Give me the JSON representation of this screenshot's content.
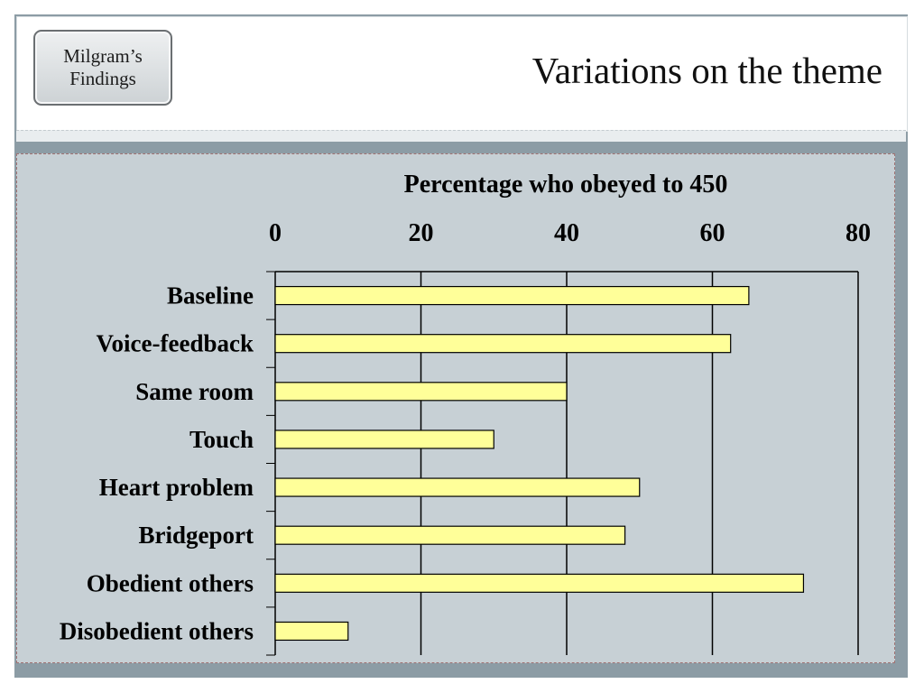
{
  "header": {
    "badge": {
      "line1": "Milgram’s",
      "line2": "Findings"
    },
    "title": "Variations on the theme"
  },
  "colors": {
    "bar_fill": "#ffff99",
    "panel_bg": "#c7d0d5",
    "frame": "#8c9ca5"
  },
  "chart_data": {
    "type": "bar",
    "orientation": "horizontal",
    "title": "Percentage who obeyed to 450",
    "categories": [
      "Baseline",
      "Voice-feedback",
      "Same room",
      "Touch",
      "Heart problem",
      "Bridgeport",
      "Obedient others",
      "Disobedient others"
    ],
    "values": [
      65,
      62.5,
      40,
      30,
      50,
      48,
      72.5,
      10
    ],
    "xlim": [
      0,
      80
    ],
    "x_ticks": [
      0,
      20,
      40,
      60,
      80
    ],
    "x_axis_position": "top",
    "grid": true,
    "xlabel": "",
    "ylabel": "",
    "legend": "none"
  }
}
